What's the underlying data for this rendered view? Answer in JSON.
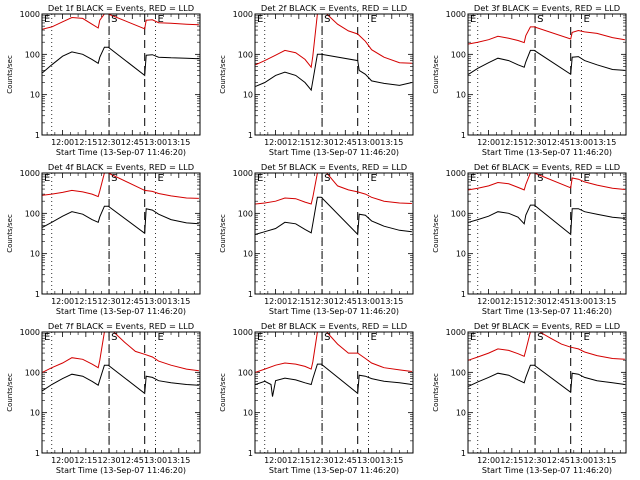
{
  "chart_data": {
    "type": "line",
    "layout": "3x3 grid of panels",
    "x_axis": {
      "label": "Start Time (13-Sep-07 11:46:20)",
      "tick_labels": [
        "12:00",
        "12:15",
        "12:30",
        "12:45",
        "13:00",
        "13:15"
      ],
      "tick_values_min": [
        0,
        15,
        30,
        45,
        60,
        75
      ],
      "range_min": [
        -13.3,
        88.7
      ],
      "dotted_verticals_min": [
        -7,
        30,
        60
      ],
      "dashed_verticals_min": [
        30,
        53
      ],
      "markers": [
        {
          "label": "E",
          "at_min": -13.3
        },
        {
          "label": "S",
          "at_min": 30
        },
        {
          "label": "E",
          "at_min": 60
        }
      ]
    },
    "y_axis": {
      "label": "Counts/sec",
      "scale": "log",
      "range": [
        1,
        1000
      ],
      "tick_labels": [
        "1",
        "10",
        "100",
        "1000"
      ]
    },
    "series_colors": {
      "black": "#000000",
      "red": "#d40000"
    },
    "panels": [
      {
        "title": "Det 1f BLACK = Events, RED = LLD",
        "black": {
          "x": [
            -13,
            -7,
            0,
            6,
            13,
            19,
            23,
            24,
            27,
            29.5,
            53,
            54,
            58,
            62,
            70,
            80,
            88
          ],
          "y": [
            35,
            55,
            90,
            115,
            100,
            75,
            60,
            85,
            150,
            150,
            30,
            95,
            98,
            85,
            82,
            80,
            78
          ]
        },
        "red": {
          "x": [
            -13,
            -7,
            0,
            6,
            13,
            19,
            23,
            24,
            27,
            29.5,
            53,
            54,
            58,
            62,
            70,
            80,
            88
          ],
          "y": [
            420,
            480,
            640,
            820,
            780,
            560,
            450,
            700,
            1000,
            1000,
            430,
            700,
            720,
            610,
            590,
            560,
            540
          ]
        }
      },
      {
        "title": "Det 2f BLACK = Events, RED = LLD",
        "black": {
          "x": [
            -13,
            -7,
            0,
            6,
            13,
            19,
            23,
            24,
            27,
            29.5,
            53,
            54,
            58,
            62,
            70,
            80,
            88
          ],
          "y": [
            16,
            20,
            30,
            36,
            30,
            20,
            13,
            22,
            100,
            100,
            70,
            40,
            32,
            22,
            19,
            17,
            20
          ]
        },
        "red": {
          "x": [
            -13,
            -7,
            0,
            6,
            13,
            19,
            23,
            24,
            27,
            29.5,
            33,
            40,
            47,
            53,
            58,
            62,
            70,
            80,
            88
          ],
          "y": [
            55,
            70,
            95,
            125,
            110,
            75,
            48,
            90,
            1000,
            1000,
            1000,
            560,
            380,
            320,
            210,
            130,
            85,
            62,
            60
          ]
        }
      },
      {
        "title": "Det 3f BLACK = Events, RED = LLD",
        "black": {
          "x": [
            -13,
            -7,
            0,
            6,
            13,
            19,
            23,
            24,
            27,
            29.5,
            53,
            54,
            58,
            62,
            70,
            80,
            88
          ],
          "y": [
            32,
            45,
            62,
            80,
            70,
            55,
            48,
            65,
            125,
            125,
            32,
            85,
            88,
            70,
            55,
            42,
            40
          ]
        },
        "red": {
          "x": [
            -13,
            -7,
            0,
            6,
            13,
            19,
            23,
            24,
            27,
            29.5,
            53,
            54,
            58,
            62,
            70,
            80,
            88
          ],
          "y": [
            180,
            200,
            230,
            280,
            250,
            220,
            195,
            290,
            480,
            480,
            240,
            350,
            390,
            360,
            330,
            260,
            230
          ]
        }
      },
      {
        "title": "Det 4f BLACK = Events, RED = LLD",
        "black": {
          "x": [
            -13,
            -7,
            0,
            6,
            13,
            19,
            23,
            24,
            27,
            29.5,
            53,
            54,
            58,
            62,
            70,
            80,
            88
          ],
          "y": [
            45,
            60,
            85,
            110,
            95,
            70,
            60,
            82,
            150,
            150,
            32,
            130,
            120,
            95,
            70,
            58,
            55
          ]
        },
        "red": {
          "x": [
            -13,
            -7,
            0,
            6,
            13,
            19,
            23,
            24,
            27,
            29.5,
            53,
            58,
            62,
            70,
            80,
            88
          ],
          "y": [
            280,
            300,
            330,
            370,
            340,
            300,
            260,
            360,
            1000,
            1000,
            370,
            350,
            310,
            270,
            240,
            235
          ]
        }
      },
      {
        "title": "Det 5f BLACK = Events, RED = LLD",
        "black": {
          "x": [
            -13,
            -7,
            0,
            6,
            13,
            19,
            23,
            24,
            27,
            29.5,
            53,
            54,
            58,
            62,
            70,
            80,
            88
          ],
          "y": [
            30,
            35,
            42,
            60,
            55,
            40,
            33,
            55,
            250,
            250,
            30,
            95,
            90,
            65,
            48,
            38,
            35
          ]
        },
        "red": {
          "x": [
            -13,
            -7,
            0,
            6,
            13,
            19,
            23,
            24,
            27,
            29.5,
            33,
            40,
            47,
            53,
            58,
            62,
            70,
            80,
            88
          ],
          "y": [
            170,
            180,
            200,
            240,
            230,
            190,
            170,
            250,
            1000,
            1000,
            1000,
            480,
            380,
            340,
            300,
            250,
            200,
            180,
            175
          ]
        }
      },
      {
        "title": "Det 6f BLACK = Events, RED = LLD",
        "black": {
          "x": [
            -13,
            -7,
            0,
            6,
            13,
            19,
            23,
            24,
            27,
            29.5,
            53,
            54,
            58,
            62,
            70,
            80,
            88
          ],
          "y": [
            60,
            70,
            85,
            110,
            100,
            80,
            55,
            90,
            160,
            160,
            30,
            130,
            130,
            110,
            95,
            80,
            75
          ]
        },
        "red": {
          "x": [
            -13,
            -7,
            0,
            6,
            13,
            19,
            23,
            24,
            27,
            29.5,
            53,
            54,
            58,
            62,
            70,
            80,
            88
          ],
          "y": [
            380,
            420,
            480,
            580,
            540,
            440,
            380,
            520,
            1000,
            1000,
            430,
            750,
            700,
            600,
            500,
            420,
            390
          ]
        }
      },
      {
        "title": "Det 7f BLACK = Events, RED = LLD",
        "black": {
          "x": [
            -13,
            -7,
            0,
            6,
            13,
            19,
            23,
            24,
            27,
            29.5,
            53,
            54,
            58,
            62,
            70,
            80,
            88
          ],
          "y": [
            35,
            50,
            70,
            90,
            80,
            60,
            48,
            65,
            150,
            150,
            30,
            80,
            75,
            62,
            55,
            50,
            48
          ]
        },
        "red": {
          "x": [
            -13,
            -7,
            0,
            6,
            13,
            19,
            23,
            24,
            27,
            29.5,
            33,
            40,
            47,
            53,
            58,
            62,
            70,
            80,
            88
          ],
          "y": [
            100,
            130,
            170,
            230,
            210,
            160,
            130,
            200,
            1000,
            1000,
            1000,
            560,
            330,
            280,
            240,
            190,
            150,
            120,
            110
          ]
        }
      },
      {
        "title": "Det 8f BLACK = Events, RED = LLD",
        "black": {
          "x": [
            -13,
            -7,
            -3,
            -2,
            0,
            6,
            13,
            19,
            23,
            24,
            27,
            29.5,
            53,
            54,
            58,
            62,
            70,
            80,
            88
          ],
          "y": [
            50,
            60,
            50,
            25,
            62,
            72,
            65,
            55,
            50,
            70,
            160,
            160,
            30,
            85,
            80,
            70,
            60,
            55,
            50
          ]
        },
        "red": {
          "x": [
            -13,
            -7,
            0,
            6,
            13,
            19,
            23,
            24,
            27,
            29.5,
            33,
            40,
            47,
            53,
            58,
            62,
            70,
            80,
            88
          ],
          "y": [
            100,
            120,
            150,
            170,
            160,
            140,
            120,
            180,
            1000,
            1000,
            1000,
            500,
            300,
            300,
            220,
            170,
            130,
            115,
            105
          ]
        }
      },
      {
        "title": "Det 9f BLACK = Events, RED = LLD",
        "black": {
          "x": [
            -13,
            -7,
            0,
            6,
            13,
            19,
            23,
            24,
            27,
            29.5,
            53,
            54,
            58,
            62,
            70,
            80,
            88
          ],
          "y": [
            45,
            58,
            75,
            95,
            85,
            65,
            55,
            75,
            150,
            150,
            32,
            95,
            90,
            75,
            62,
            55,
            50
          ]
        },
        "red": {
          "x": [
            -13,
            -7,
            0,
            6,
            13,
            19,
            23,
            24,
            27,
            29.5,
            33,
            40,
            47,
            53,
            58,
            62,
            70,
            80,
            88
          ],
          "y": [
            200,
            240,
            300,
            380,
            350,
            290,
            250,
            350,
            1000,
            1000,
            1000,
            700,
            500,
            420,
            380,
            320,
            260,
            220,
            210
          ]
        }
      }
    ]
  }
}
